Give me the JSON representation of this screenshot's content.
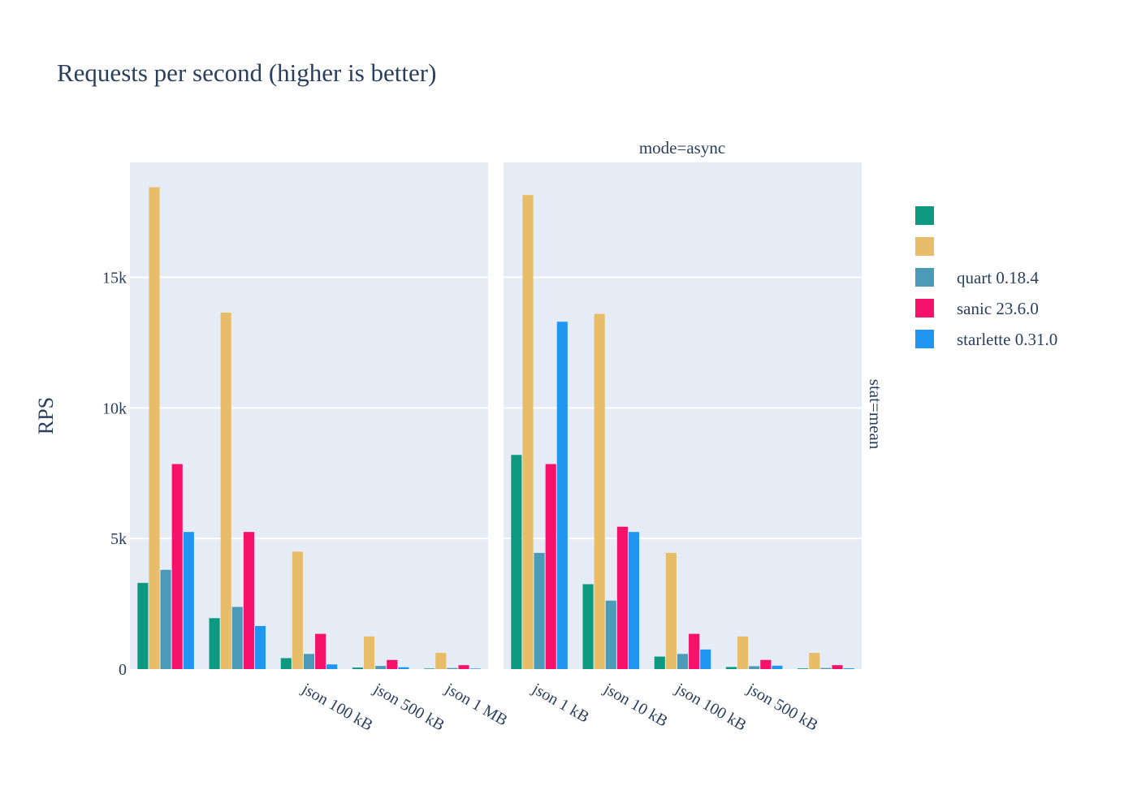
{
  "chart_data": {
    "type": "bar",
    "title": "Requests per second (higher is better)",
    "ylabel": "RPS",
    "xlabel": "",
    "ylim": [
      0,
      19400
    ],
    "yticks": [
      {
        "value": 0,
        "label": "0"
      },
      {
        "value": 5000,
        "label": "5k"
      },
      {
        "value": 10000,
        "label": "10k"
      },
      {
        "value": 15000,
        "label": "15k"
      }
    ],
    "row_facet_label": "stat=mean",
    "legend_position": "right",
    "series": [
      {
        "name": "",
        "color": "#0d9880"
      },
      {
        "name": "",
        "color": "#e8bd6a"
      },
      {
        "name": "quart 0.18.4",
        "color": "#4a9ab8"
      },
      {
        "name": "sanic 23.6.0",
        "color": "#f6126a"
      },
      {
        "name": "starlette 0.31.0",
        "color": "#2196f0"
      }
    ],
    "panels": [
      {
        "facet_label": "",
        "categories": [
          "",
          "",
          "json 100 kB",
          "json 500 kB",
          "json 1 MB"
        ],
        "values": [
          [
            3300,
            1950,
            420,
            60,
            20
          ],
          [
            18450,
            13650,
            4500,
            1250,
            620
          ],
          [
            3800,
            2380,
            580,
            120,
            40
          ],
          [
            7850,
            5250,
            1350,
            350,
            150
          ],
          [
            5250,
            1650,
            180,
            70,
            20
          ]
        ]
      },
      {
        "facet_label": "mode=async",
        "categories": [
          "json 1 kB",
          "json 10 kB",
          "json 100 kB",
          "json 500 kB",
          ""
        ],
        "values": [
          [
            8200,
            3250,
            480,
            80,
            25
          ],
          [
            18150,
            13600,
            4450,
            1250,
            620
          ],
          [
            4450,
            2620,
            580,
            110,
            40
          ],
          [
            7850,
            5450,
            1350,
            350,
            150
          ],
          [
            13300,
            5250,
            750,
            130,
            30
          ]
        ]
      }
    ]
  }
}
